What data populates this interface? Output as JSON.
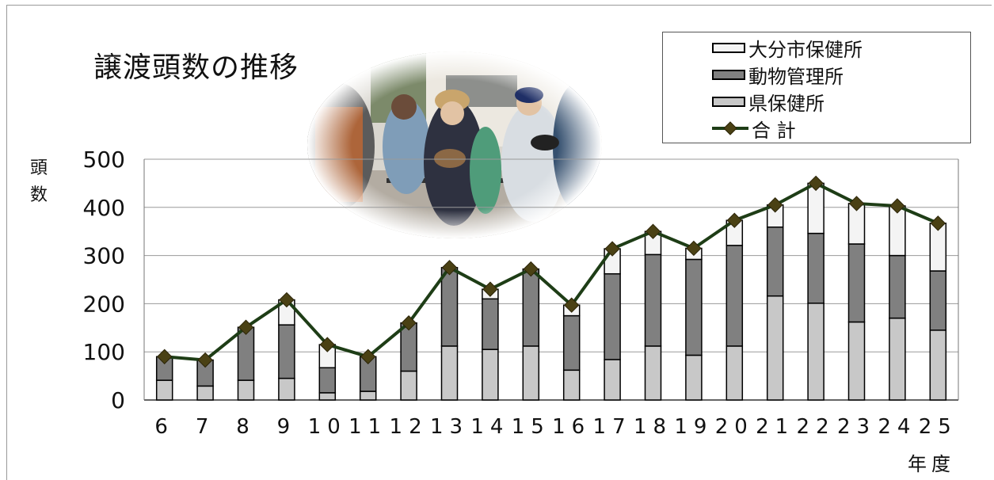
{
  "chart_data": {
    "type": "bar",
    "title": "譲渡頭数の推移",
    "ylabel": "頭数",
    "xlabel": "年度",
    "categories": [
      "6",
      "7",
      "8",
      "9",
      "10",
      "11",
      "12",
      "13",
      "14",
      "15",
      "16",
      "17",
      "18",
      "19",
      "20",
      "21",
      "22",
      "23",
      "24",
      "25"
    ],
    "series": [
      {
        "name": "県保健所",
        "values": [
          41,
          29,
          41,
          45,
          15,
          18,
          60,
          112,
          105,
          112,
          62,
          84,
          112,
          93,
          112,
          216,
          201,
          162,
          170,
          145
        ],
        "color": "#c8c8c8"
      },
      {
        "name": "動物管理所",
        "values": [
          49,
          54,
          110,
          111,
          52,
          72,
          100,
          163,
          105,
          160,
          113,
          178,
          190,
          199,
          209,
          143,
          145,
          162,
          130,
          123
        ],
        "color": "#808080"
      },
      {
        "name": "大分市保健所",
        "values": [
          0,
          0,
          0,
          52,
          48,
          0,
          0,
          0,
          20,
          0,
          22,
          52,
          48,
          23,
          52,
          46,
          104,
          84,
          103,
          99
        ],
        "color": "#f4f4f4"
      }
    ],
    "total": {
      "name": "合 計",
      "values": [
        90,
        83,
        151,
        208,
        115,
        90,
        160,
        275,
        230,
        272,
        197,
        314,
        350,
        315,
        373,
        405,
        450,
        408,
        403,
        367
      ],
      "color": "#1e3d16",
      "marker": "diamond",
      "marker_color": "#4a4114"
    },
    "ylim": [
      0,
      500
    ],
    "yticks": [
      0,
      100,
      200,
      300,
      400,
      500
    ],
    "grid": true,
    "legend_position": "top-right",
    "stacked": true
  },
  "photo": {
    "icon": "photo-people-holding-dogs"
  }
}
